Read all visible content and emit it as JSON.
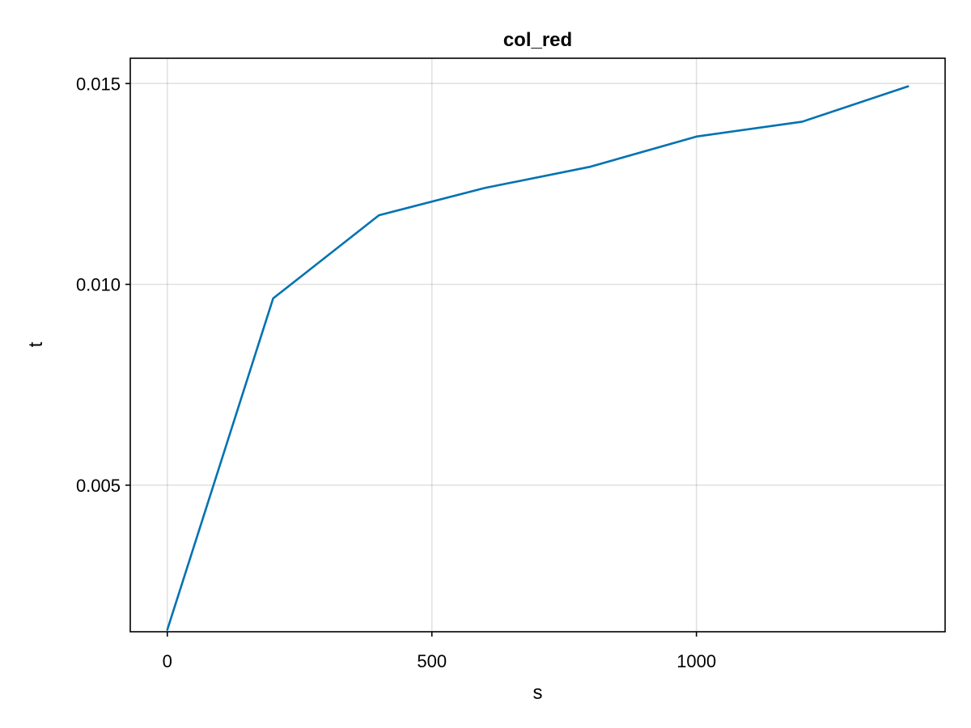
{
  "chart_data": {
    "type": "line",
    "title": "col_red",
    "xlabel": "s",
    "ylabel": "t",
    "xlim": [
      -70,
      1470
    ],
    "ylim": [
      0.00135,
      0.01563
    ],
    "xticks": [
      0,
      500,
      1000
    ],
    "xtick_labels": [
      "0",
      "500",
      "1000"
    ],
    "yticks": [
      0.005,
      0.01,
      0.015
    ],
    "ytick_labels": [
      "0.005",
      "0.010",
      "0.015"
    ],
    "grid": true,
    "colors": {
      "series": "#0072b2"
    },
    "series": [
      {
        "x": [
          0,
          200,
          400,
          600,
          800,
          1000,
          1200,
          1400
        ],
        "y": [
          0.0014,
          0.00965,
          0.01172,
          0.0124,
          0.01293,
          0.01368,
          0.01405,
          0.01493
        ]
      }
    ]
  }
}
